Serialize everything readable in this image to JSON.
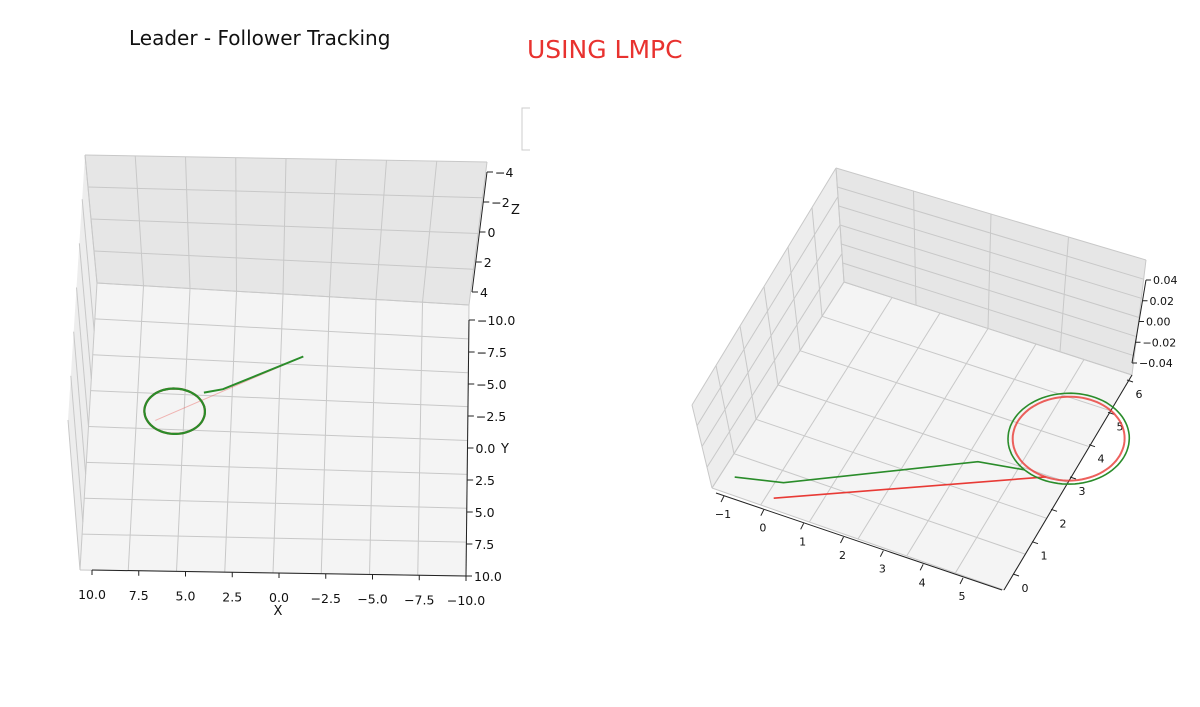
{
  "figure": {
    "left_title": "Leader - Follower Tracking",
    "right_title": "USING LMPC",
    "right_title_color": "#e8322f"
  },
  "chart_data": [
    {
      "type": "line",
      "projection": "3d",
      "title": "Leader - Follower Tracking",
      "xlabel": "X",
      "ylabel": "Y",
      "zlabel": "Z",
      "x_ticks": [
        "10.0",
        "7.5",
        "5.0",
        "2.5",
        "0.0",
        "−2.5",
        "−5.0",
        "−7.5",
        "−10.0"
      ],
      "y_ticks": [
        "−10.0",
        "−7.5",
        "−5.0",
        "−2.5",
        "0.0",
        "2.5",
        "5.0",
        "7.5",
        "10.0"
      ],
      "z_ticks": [
        "−4",
        "−2",
        "0",
        "2",
        "4"
      ],
      "xlim": [
        10,
        -10
      ],
      "ylim": [
        -10,
        10
      ],
      "zlim": [
        -4,
        4
      ],
      "grid": true,
      "series": [
        {
          "color": "#e83a35",
          "trajectory": "leader",
          "path": [
            {
              "x": -1.2,
              "y": -5.6
            },
            {
              "x": 6.5,
              "y": -0.6
            }
          ],
          "circle": {
            "center_x": 5.5,
            "center_y": -1.3,
            "radius": 1.6
          }
        },
        {
          "color": "#2a8c2a",
          "trajectory": "follower",
          "path": [
            {
              "x": -1.2,
              "y": -5.6
            },
            {
              "x": 3.0,
              "y": -3.0
            },
            {
              "x": 4.0,
              "y": -2.7
            }
          ],
          "circle": {
            "center_x": 5.5,
            "center_y": -1.3,
            "radius": 1.6
          }
        }
      ]
    },
    {
      "type": "line",
      "projection": "3d",
      "title": "USING LMPC",
      "x_ticks": [
        "−1",
        "0",
        "1",
        "2",
        "3",
        "4",
        "5"
      ],
      "y_ticks": [
        "0",
        "1",
        "2",
        "3",
        "4",
        "5",
        "6"
      ],
      "z_ticks": [
        "−0.04",
        "−0.02",
        "0.00",
        "0.02",
        "0.04"
      ],
      "xlim": [
        -1.3,
        5.5
      ],
      "ylim": [
        -0.3,
        6.4
      ],
      "zlim": [
        -0.05,
        0.05
      ],
      "grid": true,
      "series": [
        {
          "color": "#e83a35",
          "trajectory": "leader",
          "path": [
            {
              "x": 0.0,
              "y": 0.0
            },
            {
              "x": 5.0,
              "y": 3.0
            }
          ],
          "circle": {
            "center_x": 5.0,
            "center_y": 4.2,
            "radius": 1.2
          }
        },
        {
          "color": "#2a8c2a",
          "trajectory": "follower",
          "path": [
            {
              "x": -1.0,
              "y": 0.2
            },
            {
              "x": 0.0,
              "y": 0.5
            },
            {
              "x": 3.5,
              "y": 2.8
            },
            {
              "x": 4.5,
              "y": 3.0
            }
          ],
          "circle": {
            "center_x": 5.0,
            "center_y": 4.2,
            "radius": 1.3
          }
        }
      ]
    }
  ]
}
